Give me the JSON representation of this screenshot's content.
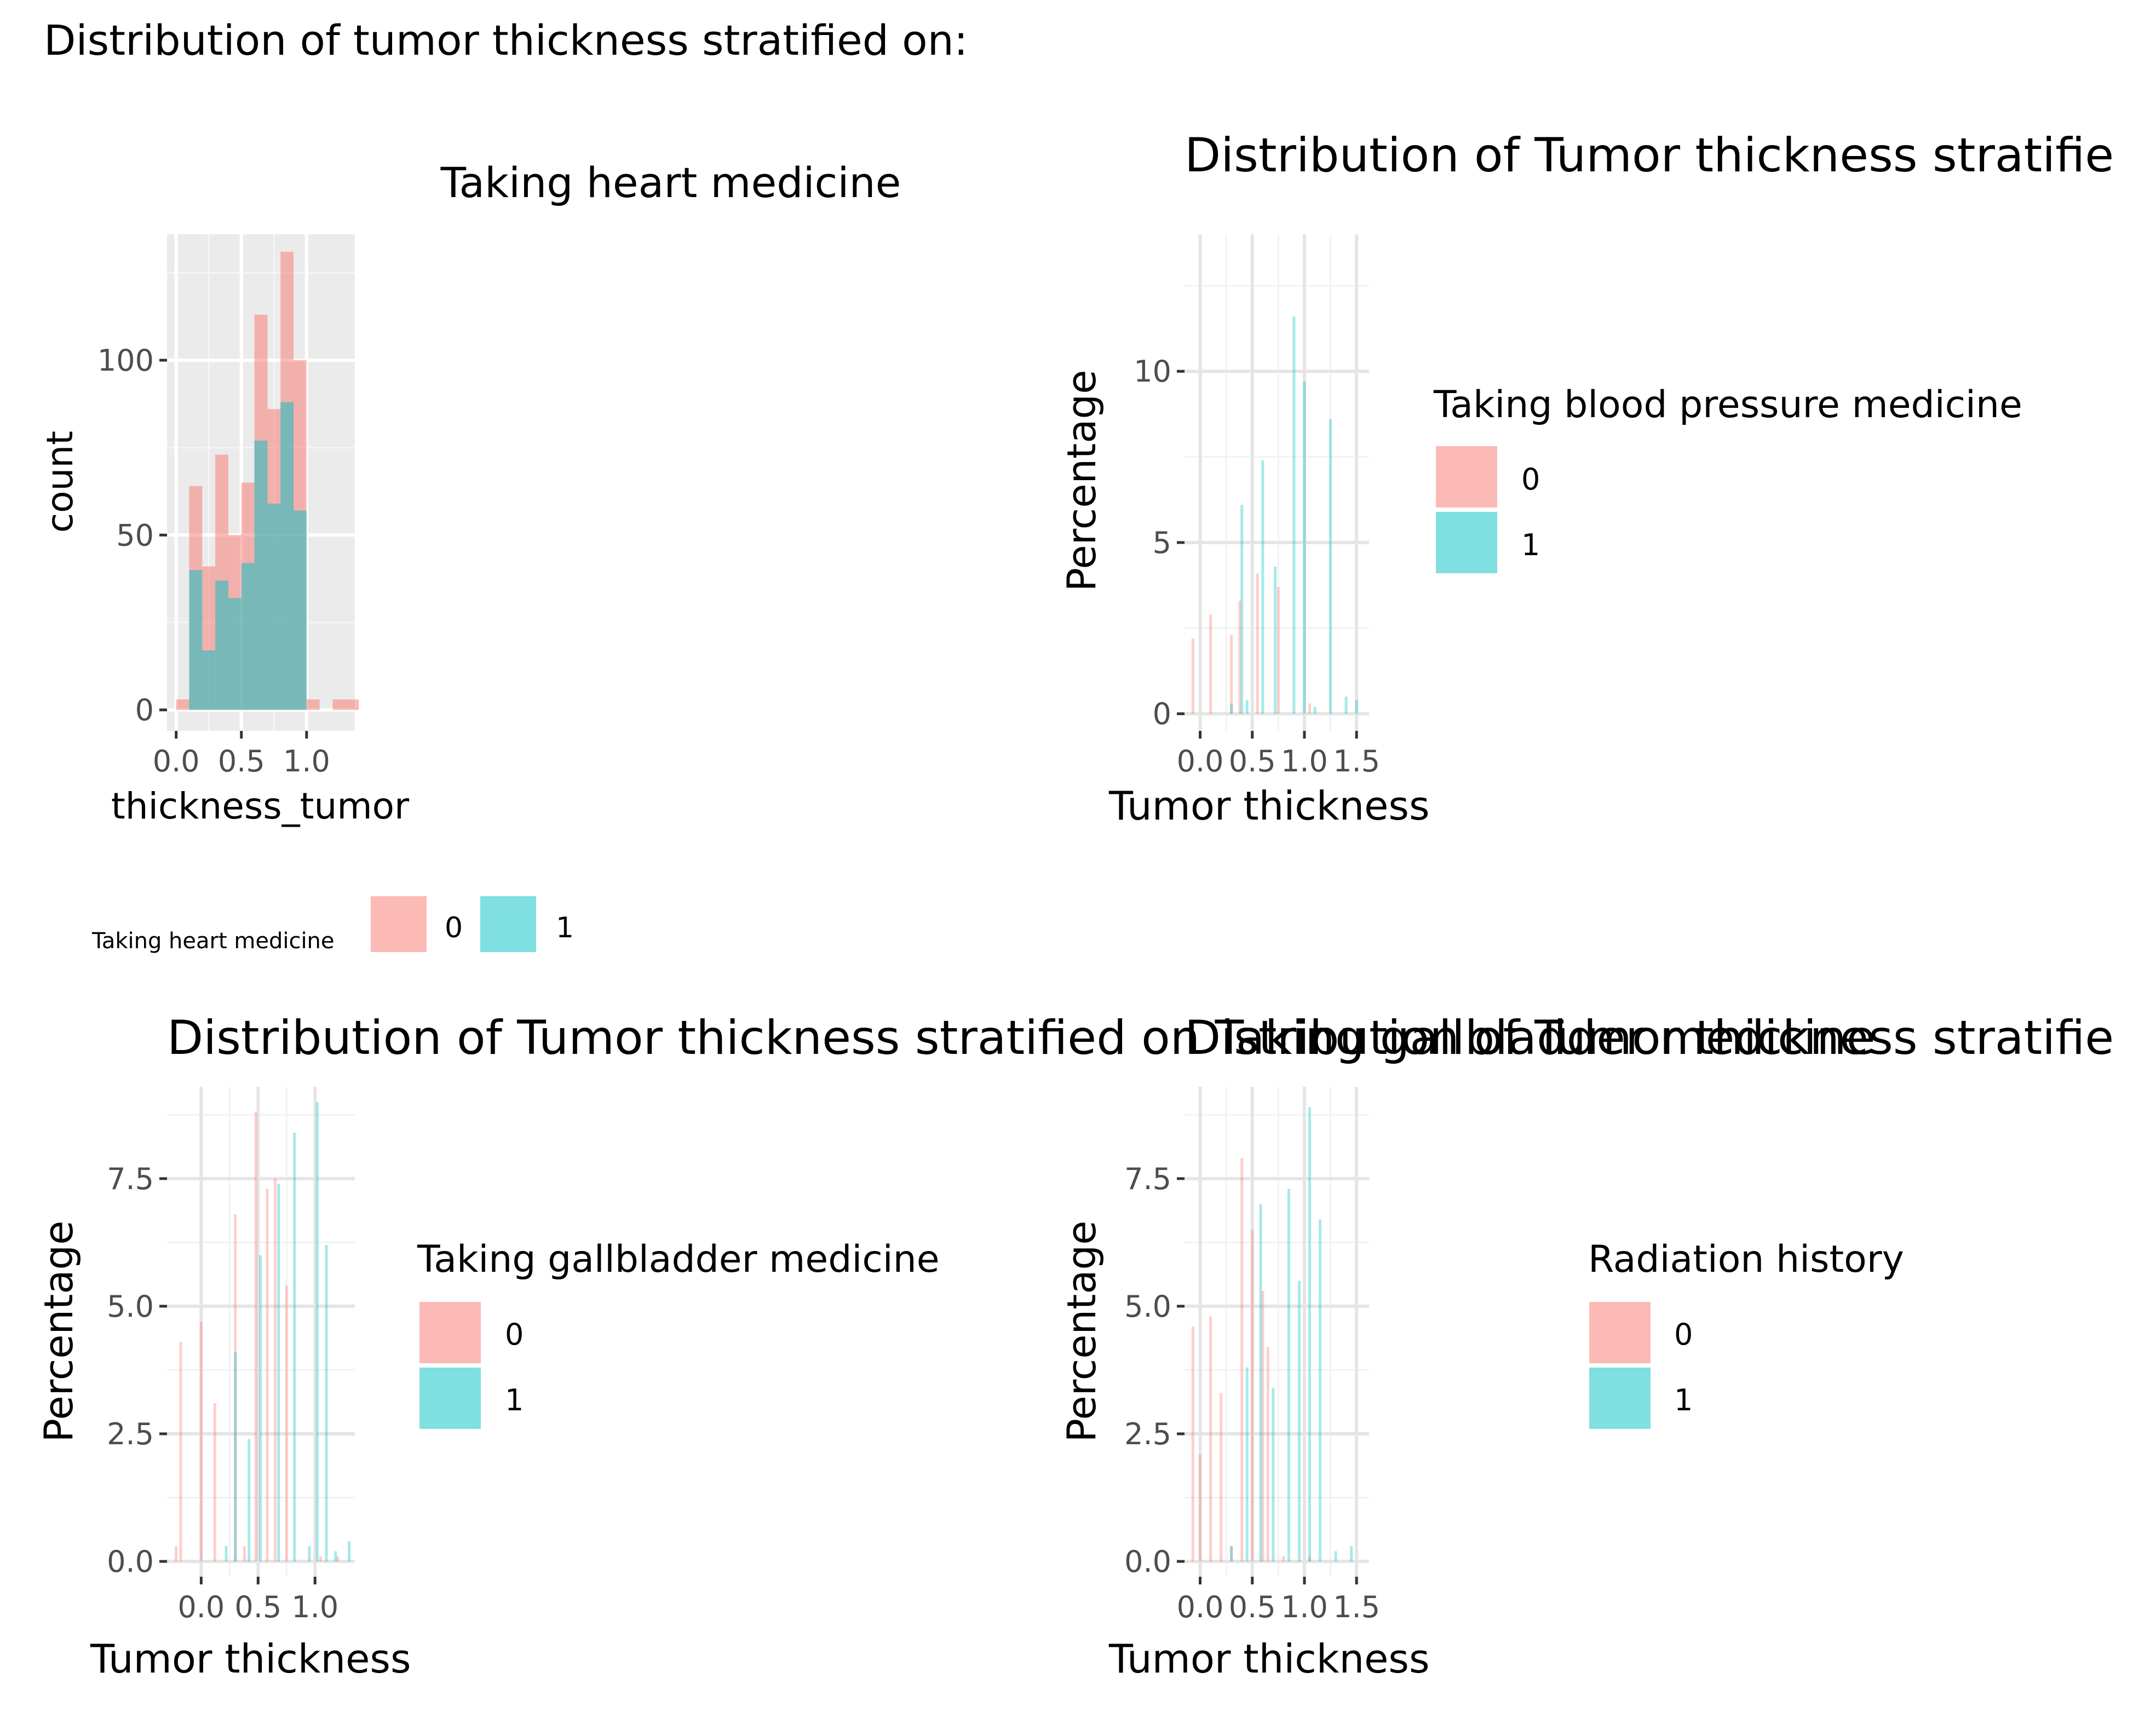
{
  "figure": {
    "title": "Distribution of tumor thickness stratified on:"
  },
  "colors": {
    "group0": "#F8766D",
    "group1": "#00BFC4",
    "panel_grey_bg": "#EBEBEB",
    "text": "#000000",
    "tick_text": "#4D4D4D"
  },
  "chart_data": [
    {
      "id": "heart",
      "type": "histogram",
      "title": "Taking heart medicine",
      "xlabel": "thickness_tumor",
      "ylabel": "count",
      "xlim": [
        -0.07,
        1.37
      ],
      "ylim": [
        -6,
        136
      ],
      "xticks": [
        0.0,
        0.5,
        1.0
      ],
      "xtick_labels": [
        "0.0",
        "0.5",
        "1.0"
      ],
      "yticks": [
        0,
        50,
        100
      ],
      "ytick_labels": [
        "0",
        "50",
        "100"
      ],
      "bin_width": 0.1,
      "bin_starts": [
        0.0,
        0.1,
        0.2,
        0.3,
        0.4,
        0.5,
        0.6,
        0.7,
        0.8,
        0.9,
        1.0,
        1.1,
        1.2,
        1.3
      ],
      "series": [
        {
          "name": "0",
          "values": [
            3,
            64,
            41,
            73,
            50,
            65,
            113,
            86,
            131,
            100,
            3,
            0,
            3,
            3
          ]
        },
        {
          "name": "1",
          "values": [
            0,
            40,
            17,
            37,
            32,
            42,
            77,
            59,
            88,
            57,
            0,
            0,
            0,
            0
          ]
        }
      ],
      "grid": true,
      "background": "grey",
      "legend": {
        "position": "bottom",
        "title": "Taking heart medicine",
        "entries": [
          "0",
          "1"
        ]
      }
    },
    {
      "id": "bp",
      "type": "bar",
      "title": "Distribution of Tumor thickness stratifie",
      "xlabel": "Tumor thickness",
      "ylabel": "Percentage",
      "xlim": [
        -0.15,
        1.62
      ],
      "ylim": [
        -0.5,
        14
      ],
      "xticks": [
        0.0,
        0.5,
        1.0,
        1.5
      ],
      "xtick_labels": [
        "0.0",
        "0.5",
        "1.0",
        "1.5"
      ],
      "yticks": [
        0,
        5,
        10
      ],
      "ytick_labels": [
        "0",
        "5",
        "10"
      ],
      "grid": true,
      "background": "white",
      "legend": {
        "position": "right",
        "title": "Taking blood pressure medicine",
        "entries": [
          "0",
          "1"
        ]
      },
      "series": [
        {
          "name": "0",
          "x": [
            -0.07,
            0.1,
            0.3,
            0.38,
            0.55,
            0.75,
            1.05
          ],
          "values": [
            2.2,
            2.9,
            2.3,
            3.3,
            4.1,
            3.7,
            0.3
          ]
        },
        {
          "name": "1",
          "x": [
            0.3,
            0.4,
            0.45,
            0.6,
            0.72,
            0.9,
            1.0,
            1.1,
            1.25,
            1.4,
            1.5
          ],
          "values": [
            0.3,
            6.1,
            0.4,
            7.4,
            4.3,
            11.6,
            9.7,
            0.2,
            8.6,
            0.5,
            0.4
          ]
        }
      ]
    },
    {
      "id": "gall",
      "type": "bar",
      "title": "Distribution of Tumor thickness stratified on Taking gallbladder medicine",
      "xlabel": "Tumor thickness",
      "ylabel": "Percentage",
      "xlim": [
        -0.3,
        1.35
      ],
      "ylim": [
        -0.3,
        9.3
      ],
      "xticks": [
        0.0,
        0.5,
        1.0
      ],
      "xtick_labels": [
        "0.0",
        "0.5",
        "1.0"
      ],
      "yticks": [
        0.0,
        2.5,
        5.0,
        7.5
      ],
      "ytick_labels": [
        "0.0",
        "2.5",
        "5.0",
        "7.5"
      ],
      "grid": true,
      "background": "white",
      "legend": {
        "position": "right",
        "title": "Taking gallbladder medicine",
        "entries": [
          "0",
          "1"
        ]
      },
      "series": [
        {
          "name": "0",
          "x": [
            -0.22,
            -0.18,
            0.0,
            0.12,
            0.3,
            0.38,
            0.48,
            0.58,
            0.65,
            0.75,
            1.05,
            1.2
          ],
          "values": [
            0.3,
            4.3,
            4.7,
            3.1,
            6.8,
            0.3,
            8.8,
            7.3,
            7.5,
            5.4,
            0.1,
            0.1
          ]
        },
        {
          "name": "1",
          "x": [
            0.22,
            0.3,
            0.42,
            0.52,
            0.68,
            0.82,
            0.95,
            1.02,
            1.1,
            1.18,
            1.3
          ],
          "values": [
            0.3,
            4.1,
            2.4,
            6.0,
            7.4,
            8.4,
            0.3,
            9.0,
            6.2,
            0.2,
            0.4
          ]
        }
      ]
    },
    {
      "id": "rad",
      "type": "bar",
      "title": "Distribution of Tumor thickness stratifie",
      "xlabel": "Tumor thickness",
      "ylabel": "Percentage",
      "xlim": [
        -0.15,
        1.62
      ],
      "ylim": [
        -0.3,
        9.3
      ],
      "xticks": [
        0.0,
        0.5,
        1.0,
        1.5
      ],
      "xtick_labels": [
        "0.0",
        "0.5",
        "1.0",
        "1.5"
      ],
      "yticks": [
        0.0,
        2.5,
        5.0,
        7.5
      ],
      "ytick_labels": [
        "0.0",
        "2.5",
        "5.0",
        "7.5"
      ],
      "grid": true,
      "background": "white",
      "legend": {
        "position": "right",
        "title": "Radiation history",
        "entries": [
          "0",
          "1"
        ]
      },
      "series": [
        {
          "name": "0",
          "x": [
            -0.07,
            0.0,
            0.1,
            0.2,
            0.3,
            0.4,
            0.5,
            0.6,
            0.65,
            0.8,
            1.05
          ],
          "values": [
            4.6,
            2.1,
            4.8,
            3.3,
            0.3,
            7.9,
            6.5,
            5.3,
            4.2,
            0.1,
            0.1
          ]
        },
        {
          "name": "1",
          "x": [
            0.3,
            0.45,
            0.58,
            0.7,
            0.85,
            0.95,
            1.05,
            1.15,
            1.3,
            1.45
          ],
          "values": [
            0.3,
            3.8,
            7.0,
            3.4,
            7.3,
            5.5,
            8.9,
            6.7,
            0.2,
            0.3
          ]
        }
      ]
    }
  ]
}
